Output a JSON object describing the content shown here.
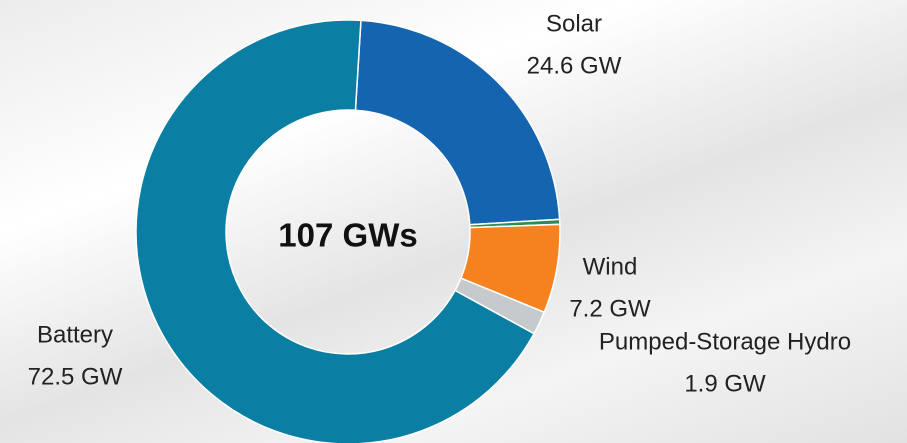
{
  "chart_data": {
    "type": "pie",
    "center_label": "107 GWs",
    "categories": [
      "Solar",
      null,
      "Wind",
      "Pumped-Storage Hydro",
      "Battery"
    ],
    "values": [
      24.6,
      0.4,
      7.2,
      1.9,
      72.5
    ],
    "value_labels": [
      "24.6 GW",
      null,
      "7.2 GW",
      "1.9 GW",
      "72.5 GW"
    ],
    "colors": [
      "#1464af",
      "#2e8b57",
      "#f5821f",
      "#c5cacd",
      "#0a7ea3"
    ]
  }
}
